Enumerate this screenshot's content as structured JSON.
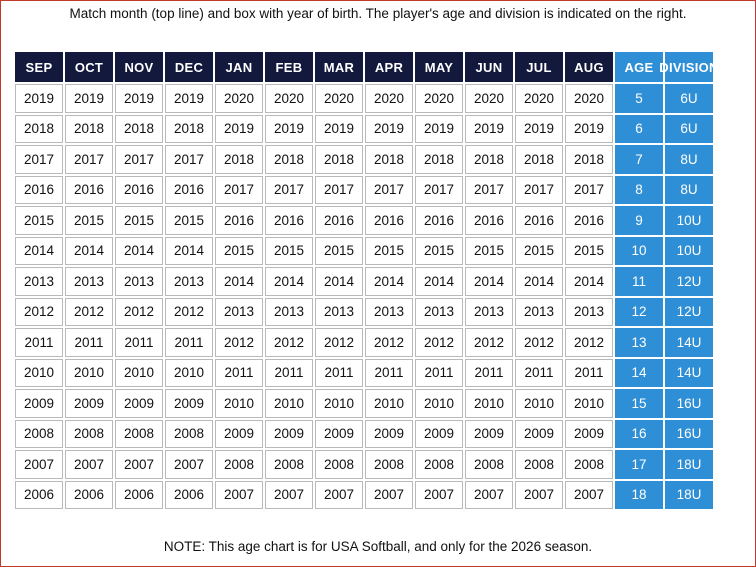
{
  "caption": "Match month (top line) and box with year of birth. The player's age and division is indicated on the right.",
  "headers": [
    "SEP",
    "OCT",
    "NOV",
    "DEC",
    "JAN",
    "FEB",
    "MAR",
    "APR",
    "MAY",
    "JUN",
    "JUL",
    "AUG",
    "AGE",
    "DIVISION"
  ],
  "rows": [
    [
      "2019",
      "2019",
      "2019",
      "2019",
      "2020",
      "2020",
      "2020",
      "2020",
      "2020",
      "2020",
      "2020",
      "2020",
      "5",
      "6U"
    ],
    [
      "2018",
      "2018",
      "2018",
      "2018",
      "2019",
      "2019",
      "2019",
      "2019",
      "2019",
      "2019",
      "2019",
      "2019",
      "6",
      "6U"
    ],
    [
      "2017",
      "2017",
      "2017",
      "2017",
      "2018",
      "2018",
      "2018",
      "2018",
      "2018",
      "2018",
      "2018",
      "2018",
      "7",
      "8U"
    ],
    [
      "2016",
      "2016",
      "2016",
      "2016",
      "2017",
      "2017",
      "2017",
      "2017",
      "2017",
      "2017",
      "2017",
      "2017",
      "8",
      "8U"
    ],
    [
      "2015",
      "2015",
      "2015",
      "2015",
      "2016",
      "2016",
      "2016",
      "2016",
      "2016",
      "2016",
      "2016",
      "2016",
      "9",
      "10U"
    ],
    [
      "2014",
      "2014",
      "2014",
      "2014",
      "2015",
      "2015",
      "2015",
      "2015",
      "2015",
      "2015",
      "2015",
      "2015",
      "10",
      "10U"
    ],
    [
      "2013",
      "2013",
      "2013",
      "2013",
      "2014",
      "2014",
      "2014",
      "2014",
      "2014",
      "2014",
      "2014",
      "2014",
      "11",
      "12U"
    ],
    [
      "2012",
      "2012",
      "2012",
      "2012",
      "2013",
      "2013",
      "2013",
      "2013",
      "2013",
      "2013",
      "2013",
      "2013",
      "12",
      "12U"
    ],
    [
      "2011",
      "2011",
      "2011",
      "2011",
      "2012",
      "2012",
      "2012",
      "2012",
      "2012",
      "2012",
      "2012",
      "2012",
      "13",
      "14U"
    ],
    [
      "2010",
      "2010",
      "2010",
      "2010",
      "2011",
      "2011",
      "2011",
      "2011",
      "2011",
      "2011",
      "2011",
      "2011",
      "14",
      "14U"
    ],
    [
      "2009",
      "2009",
      "2009",
      "2009",
      "2010",
      "2010",
      "2010",
      "2010",
      "2010",
      "2010",
      "2010",
      "2010",
      "15",
      "16U"
    ],
    [
      "2008",
      "2008",
      "2008",
      "2008",
      "2009",
      "2009",
      "2009",
      "2009",
      "2009",
      "2009",
      "2009",
      "2009",
      "16",
      "16U"
    ],
    [
      "2007",
      "2007",
      "2007",
      "2007",
      "2008",
      "2008",
      "2008",
      "2008",
      "2008",
      "2008",
      "2008",
      "2008",
      "17",
      "18U"
    ],
    [
      "2006",
      "2006",
      "2006",
      "2006",
      "2007",
      "2007",
      "2007",
      "2007",
      "2007",
      "2007",
      "2007",
      "2007",
      "18",
      "18U"
    ]
  ],
  "note": "NOTE: This age chart is for USA Softball, and only for the 2026 season.",
  "colors": {
    "header_navy": "#12193d",
    "accent_blue": "#2f8fd6",
    "frame_red": "#c0392b"
  }
}
